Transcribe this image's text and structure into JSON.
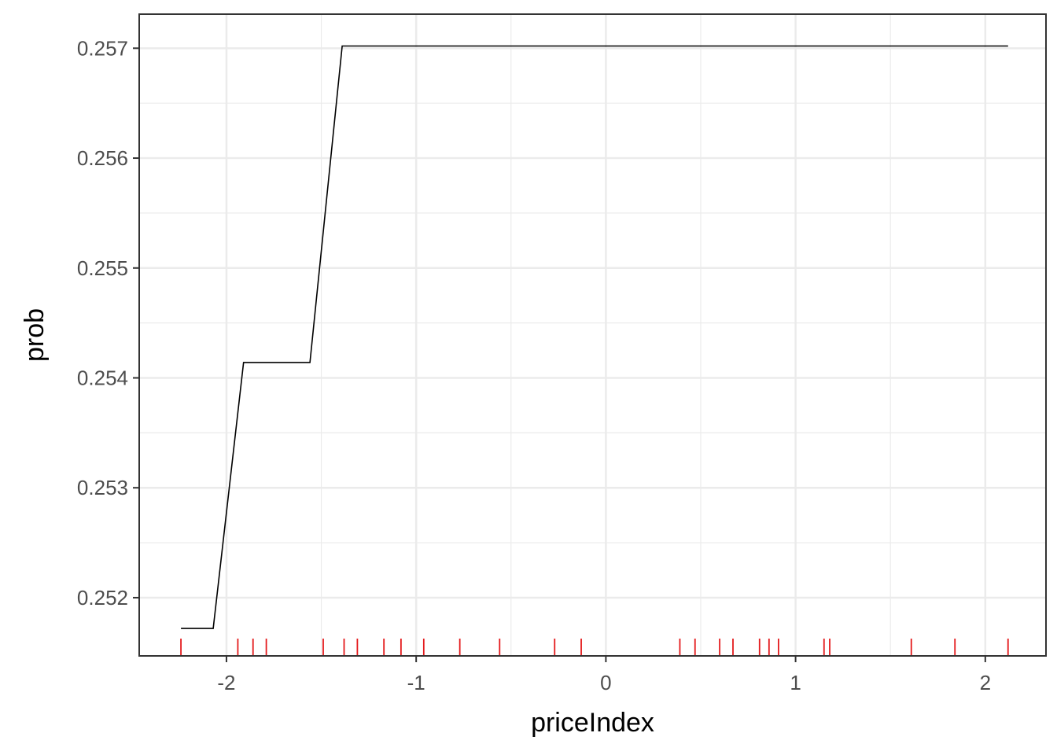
{
  "chart_data": {
    "type": "line",
    "xlabel": "priceIndex",
    "ylabel": "prob",
    "xlim": [
      -2.46,
      2.32
    ],
    "ylim": [
      0.25147,
      0.25731
    ],
    "x_ticks": [
      {
        "value": -2,
        "label": "-2"
      },
      {
        "value": -1,
        "label": "-1"
      },
      {
        "value": 0,
        "label": "0"
      },
      {
        "value": 1,
        "label": "1"
      },
      {
        "value": 2,
        "label": "2"
      }
    ],
    "y_ticks": [
      {
        "value": 0.252,
        "label": "0.252"
      },
      {
        "value": 0.253,
        "label": "0.253"
      },
      {
        "value": 0.254,
        "label": "0.254"
      },
      {
        "value": 0.255,
        "label": "0.255"
      },
      {
        "value": 0.256,
        "label": "0.256"
      },
      {
        "value": 0.257,
        "label": "0.257"
      }
    ],
    "grid": true,
    "series": [
      {
        "color": "#000000",
        "x": [
          -2.24,
          -2.07,
          -1.91,
          -1.56,
          -1.39,
          2.12
        ],
        "y": [
          0.25172,
          0.25172,
          0.25414,
          0.25414,
          0.25702,
          0.25702
        ]
      }
    ],
    "rug": {
      "color": "#e41a1c",
      "x": [
        -2.24,
        -1.94,
        -1.86,
        -1.79,
        -1.49,
        -1.38,
        -1.31,
        -1.17,
        -1.08,
        -0.96,
        -0.77,
        -0.56,
        -0.27,
        -0.13,
        0.39,
        0.47,
        0.6,
        0.67,
        0.81,
        0.86,
        0.91,
        1.15,
        1.18,
        1.61,
        1.84,
        2.12
      ]
    }
  }
}
